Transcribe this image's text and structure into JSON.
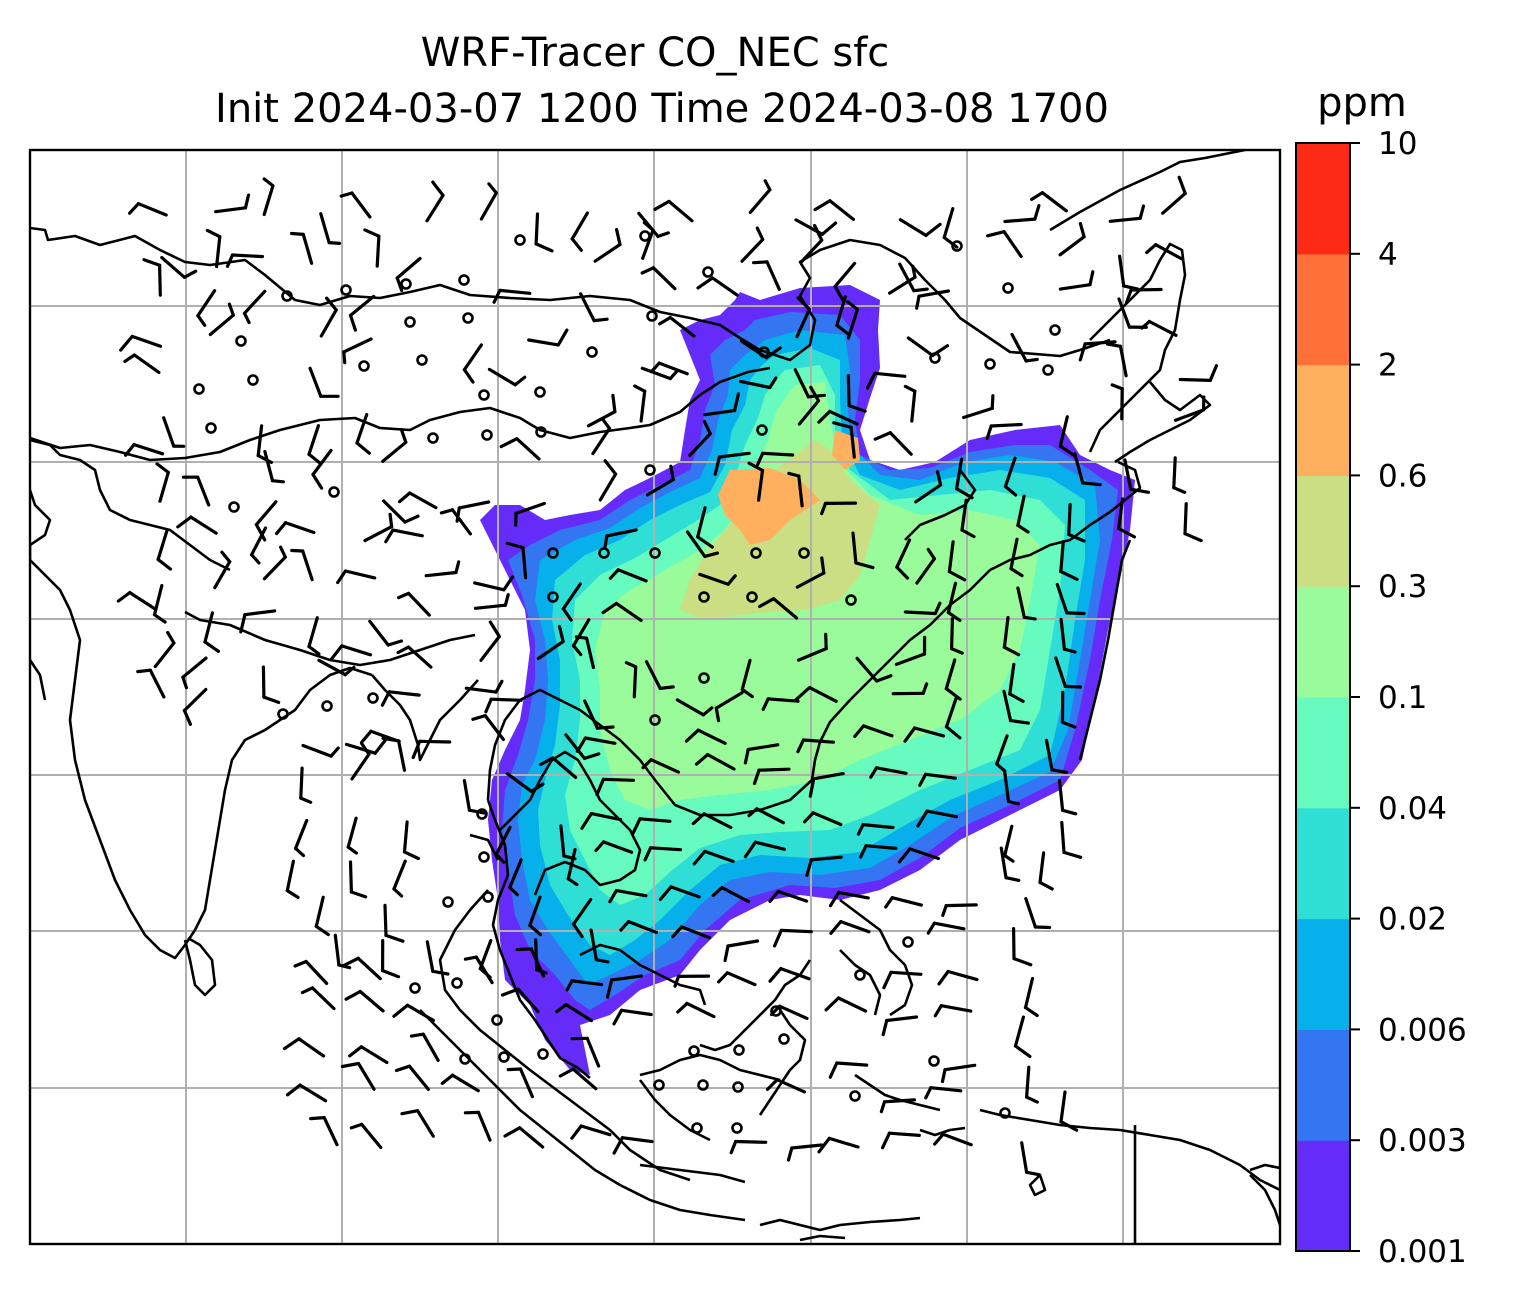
{
  "title": {
    "line1": "WRF-Tracer CO_NEC sfc",
    "line2": "Init 2024-03-07 1200 Time 2024-03-08 1700"
  },
  "colorbar": {
    "unit": "ppm",
    "levels": [
      "0.001",
      "0.003",
      "0.006",
      "0.02",
      "0.04",
      "0.1",
      "0.3",
      "0.6",
      "2",
      "4",
      "10"
    ],
    "colors": [
      "#652bf9",
      "#3475f2",
      "#07b0ea",
      "#2fdfd5",
      "#67fbbf",
      "#99fb99",
      "#ccde83",
      "#ffb05f",
      "#ff7138",
      "#ff2a15"
    ]
  },
  "map": {
    "background": "#ffffff",
    "gridlines": true,
    "gridline_color": "#b0b0b0",
    "coastline_color": "#000000",
    "overlays": [
      "CO_NEC tracer filled contours",
      "10 m wind barbs",
      "coastlines",
      "lat/lon gridlines"
    ]
  }
}
